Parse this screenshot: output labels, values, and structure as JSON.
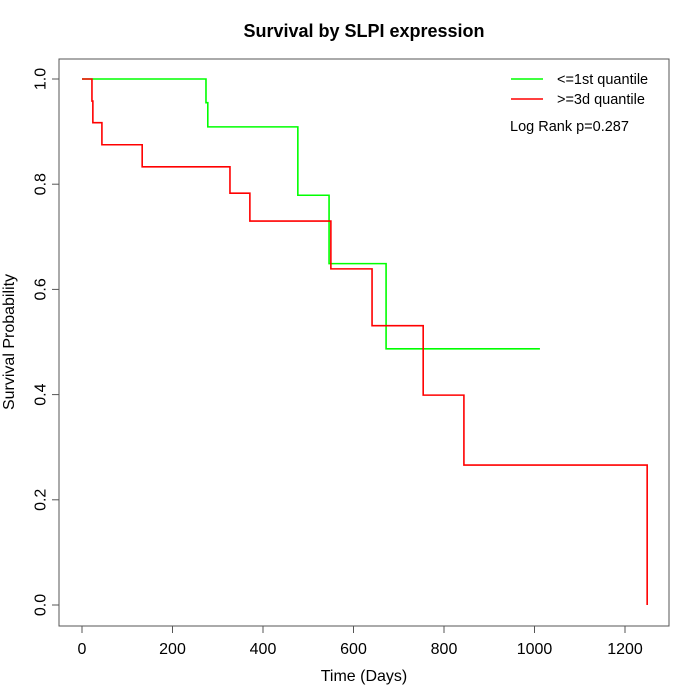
{
  "chart_data": {
    "type": "line",
    "subtype": "kaplan-meier-step",
    "title": "Survival by SLPI expression",
    "xlabel": "Time (Days)",
    "ylabel": "Survival Probability",
    "xlim": [
      0,
      1300
    ],
    "ylim": [
      0,
      1.0
    ],
    "xticks": [
      0,
      200,
      400,
      600,
      800,
      1000,
      1200
    ],
    "yticks": [
      0.0,
      0.2,
      0.4,
      0.6,
      0.8,
      1.0
    ],
    "xtick_labels": [
      "0",
      "200",
      "400",
      "600",
      "800",
      "1000",
      "1200"
    ],
    "ytick_labels": [
      "0.0",
      "0.2",
      "0.4",
      "0.6",
      "0.8",
      "1.0"
    ],
    "grid": false,
    "legend_position": "top-right",
    "annotation": "Log Rank p=0.287",
    "series": [
      {
        "name": "<=1st quantile",
        "color": "#00ff00",
        "steps": [
          {
            "t": 0,
            "s": 1.0
          },
          {
            "t": 274,
            "s": 0.955
          },
          {
            "t": 278,
            "s": 0.909
          },
          {
            "t": 477,
            "s": 0.779
          },
          {
            "t": 546,
            "s": 0.649
          },
          {
            "t": 672,
            "s": 0.487
          }
        ],
        "end_t": 1012
      },
      {
        "name": ">=3d quantile",
        "color": "#ff0000",
        "steps": [
          {
            "t": 0,
            "s": 1.0
          },
          {
            "t": 22,
            "s": 0.958
          },
          {
            "t": 24,
            "s": 0.917
          },
          {
            "t": 44,
            "s": 0.875
          },
          {
            "t": 133,
            "s": 0.833
          },
          {
            "t": 327,
            "s": 0.783
          },
          {
            "t": 371,
            "s": 0.73
          },
          {
            "t": 550,
            "s": 0.639
          },
          {
            "t": 641,
            "s": 0.531
          },
          {
            "t": 754,
            "s": 0.399
          },
          {
            "t": 844,
            "s": 0.266
          },
          {
            "t": 1249,
            "s": 0.0
          }
        ],
        "end_t": 1249
      }
    ]
  }
}
